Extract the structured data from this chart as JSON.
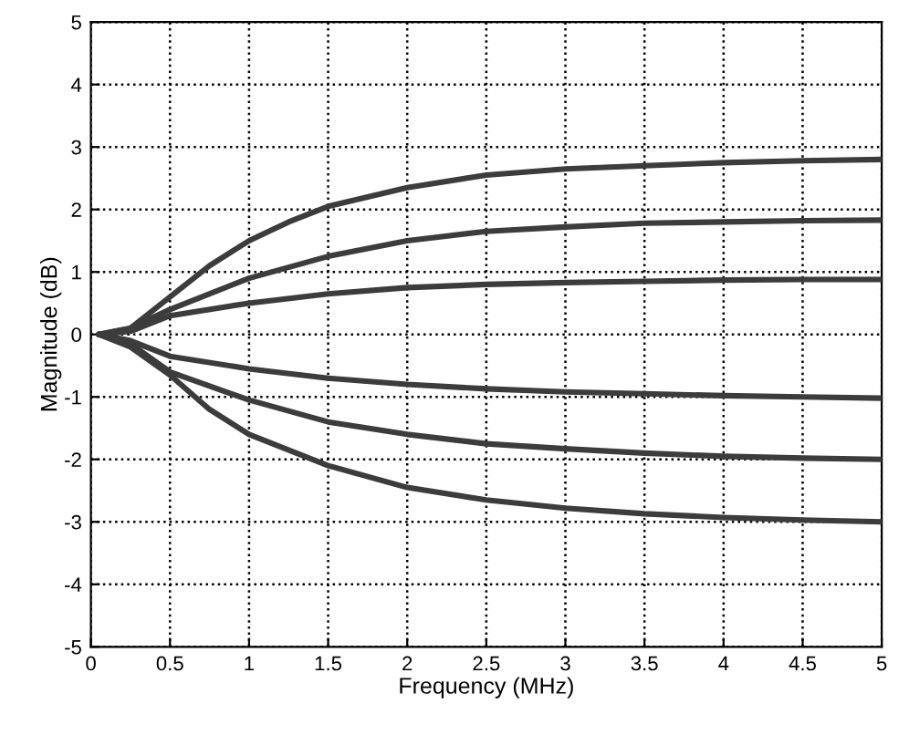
{
  "chart_data": {
    "type": "line",
    "xlabel": "Frequency (MHz)",
    "ylabel": "Magnitude (dB)",
    "xlim": [
      0,
      5
    ],
    "xticks": [
      0,
      0.5,
      1,
      1.5,
      2,
      2.5,
      3,
      3.5,
      4,
      4.5,
      5
    ],
    "ylim": [
      -5,
      5
    ],
    "yticks": [
      -5,
      -4,
      -3,
      -2,
      -1,
      0,
      1,
      2,
      3,
      4,
      5
    ],
    "grid": true,
    "line_style": "solid",
    "marker": "none",
    "series": [
      {
        "color": "#3c3c3c",
        "x": [
          0.05,
          0.25,
          0.5,
          0.75,
          1,
          1.25,
          1.5,
          2,
          2.5,
          3,
          3.5,
          4,
          4.5,
          5
        ],
        "values": [
          0,
          0.1,
          0.6,
          1.1,
          1.5,
          1.8,
          2.05,
          2.35,
          2.55,
          2.65,
          2.7,
          2.75,
          2.78,
          2.8
        ]
      },
      {
        "color": "#3c3c3c",
        "x": [
          0.05,
          0.25,
          0.5,
          1,
          1.5,
          2,
          2.5,
          3,
          3.5,
          4,
          4.5,
          5
        ],
        "values": [
          0,
          0.1,
          0.4,
          0.9,
          1.25,
          1.5,
          1.65,
          1.72,
          1.78,
          1.8,
          1.82,
          1.83
        ]
      },
      {
        "color": "#3c3c3c",
        "x": [
          0.05,
          0.25,
          0.5,
          1,
          1.5,
          2,
          2.5,
          3,
          3.5,
          4,
          4.5,
          5
        ],
        "values": [
          0,
          0.05,
          0.3,
          0.5,
          0.65,
          0.75,
          0.8,
          0.83,
          0.85,
          0.87,
          0.88,
          0.88
        ]
      },
      {
        "color": "#3c3c3c",
        "x": [
          0.05,
          0.25,
          0.5,
          1,
          1.5,
          2,
          2.5,
          3,
          3.5,
          4,
          4.5,
          5
        ],
        "values": [
          0,
          -0.1,
          -0.35,
          -0.55,
          -0.7,
          -0.8,
          -0.87,
          -0.92,
          -0.95,
          -0.98,
          -1.0,
          -1.02
        ]
      },
      {
        "color": "#3c3c3c",
        "x": [
          0.05,
          0.25,
          0.5,
          1,
          1.5,
          2,
          2.5,
          3,
          3.5,
          4,
          4.5,
          5
        ],
        "values": [
          0,
          -0.15,
          -0.6,
          -1.05,
          -1.4,
          -1.6,
          -1.75,
          -1.83,
          -1.9,
          -1.95,
          -1.98,
          -2.0
        ]
      },
      {
        "color": "#3c3c3c",
        "x": [
          0.05,
          0.25,
          0.5,
          0.75,
          1,
          1.5,
          2,
          2.5,
          3,
          3.5,
          4,
          4.5,
          5
        ],
        "values": [
          0,
          -0.2,
          -0.65,
          -1.2,
          -1.6,
          -2.1,
          -2.45,
          -2.65,
          -2.78,
          -2.87,
          -2.93,
          -2.97,
          -3.0
        ]
      }
    ]
  }
}
